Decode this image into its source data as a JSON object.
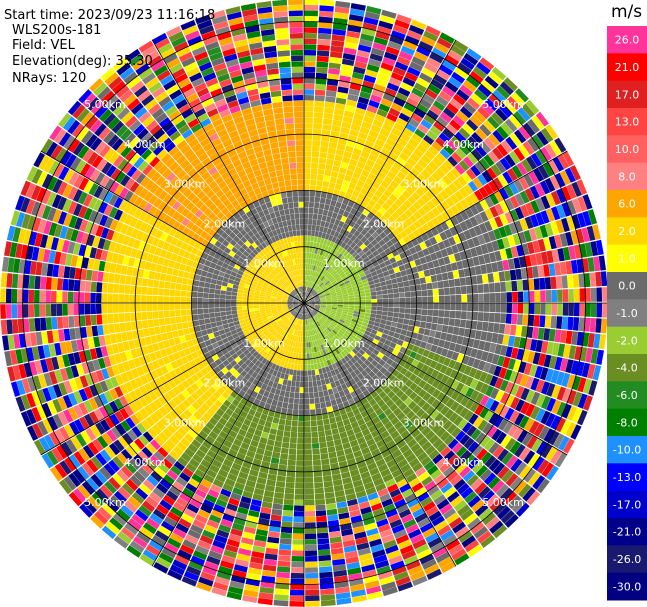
{
  "header": {
    "start_time": "Start time: 2023/09/23 11:16:18",
    "instrument": "WLS200s-181",
    "field": "Field: VEL",
    "elevation": "Elevation(deg): 35.30",
    "nrays": "NRays: 120"
  },
  "chart_data": {
    "type": "heatmap",
    "projection": "polar-ppi",
    "field": "VEL",
    "units": "m/s",
    "nrays": 120,
    "range_rings_km": [
      1.0,
      2.0,
      3.0,
      4.0,
      5.0
    ],
    "range_ring_labels": [
      "1.00km",
      "2.00km",
      "3.00km",
      "4.00km",
      "5.00km"
    ],
    "max_range_km": 5.4,
    "gates": 54,
    "crosshair_spokes_deg": [
      0,
      30,
      60,
      90,
      120,
      150,
      180,
      210,
      240,
      270,
      300,
      330
    ],
    "colorbar": {
      "ticks": [
        26.0,
        21.0,
        17.0,
        13.0,
        10.0,
        8.0,
        6.0,
        2.0,
        1.0,
        0.0,
        -1.0,
        -2.0,
        -4.0,
        -6.0,
        -8.0,
        -10.0,
        -13.0,
        -17.0,
        -21.0,
        -26.0,
        -30.0
      ],
      "tick_labels": [
        "26.0",
        "21.0",
        "17.0",
        "13.0",
        "10.0",
        "8.0",
        "6.0",
        "2.0",
        "1.0",
        "0.0",
        "-1.0",
        "-2.0",
        "-4.0",
        "-6.0",
        "-8.0",
        "-10.0",
        "-13.0",
        "-17.0",
        "-21.0",
        "-26.0",
        "-30.0"
      ],
      "colors": [
        "#ff3399",
        "#ff0000",
        "#e02020",
        "#ff4444",
        "#ff6060",
        "#ff8080",
        "#ffa500",
        "#ffd700",
        "#ffff00",
        "#6b6b6b",
        "#808080",
        "#9acd32",
        "#6b8e23",
        "#228b22",
        "#008000",
        "#1e90ff",
        "#0000ff",
        "#0000cd",
        "#00008b",
        "#191970",
        "#000080"
      ]
    },
    "regions": [
      {
        "range_km": [
          0.0,
          0.3
        ],
        "value": 0.0,
        "desc": "center"
      },
      {
        "range_km": [
          0.3,
          1.2
        ],
        "az_deg": [
          180,
          360
        ],
        "value": 2.0
      },
      {
        "range_km": [
          0.3,
          1.2
        ],
        "az_deg": [
          0,
          180
        ],
        "value": -2.0
      },
      {
        "range_km": [
          1.2,
          2.0
        ],
        "value": 0.0
      },
      {
        "range_km": [
          2.0,
          3.6
        ],
        "az_deg": [
          300,
          360
        ],
        "value": 6.0
      },
      {
        "range_km": [
          2.0,
          3.6
        ],
        "az_deg": [
          220,
          300
        ],
        "value": 2.0
      },
      {
        "range_km": [
          2.0,
          3.6
        ],
        "az_deg": [
          0,
          60
        ],
        "value": 2.0
      },
      {
        "range_km": [
          2.0,
          3.6
        ],
        "az_deg": [
          60,
          110
        ],
        "value": 0.0
      },
      {
        "range_km": [
          2.0,
          3.6
        ],
        "az_deg": [
          110,
          220
        ],
        "value": -4.0
      },
      {
        "range_km": [
          3.6,
          5.4
        ],
        "value": "noise"
      }
    ]
  }
}
